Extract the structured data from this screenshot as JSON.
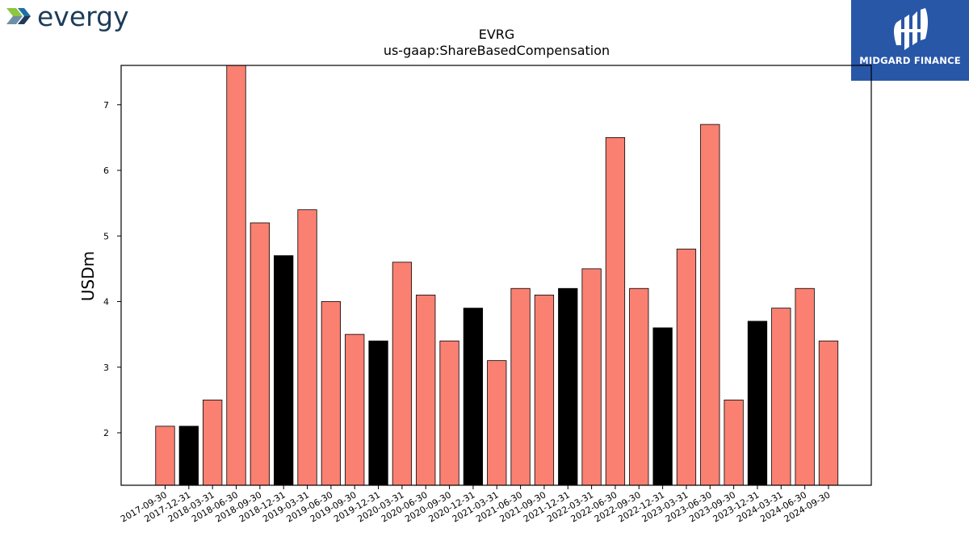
{
  "logos": {
    "left_text": "evergy",
    "right_text": "MIDGARD FINANCE"
  },
  "colors": {
    "bar_default": "#fa8072",
    "bar_highlight": "#000000",
    "brand_blue": "#2957a8",
    "evergy_text": "#1d3c5a",
    "evergy_green": "#8dc63f"
  },
  "chart_data": {
    "type": "bar",
    "title": "EVRG",
    "subtitle": "us-gaap:ShareBasedCompensation",
    "xlabel": "",
    "ylabel": "USDm",
    "ylim": [
      1.2,
      7.6
    ],
    "yticks": [
      2,
      3,
      4,
      5,
      6,
      7
    ],
    "grid": false,
    "categories": [
      "2017-09-30",
      "2017-12-31",
      "2018-03-31",
      "2018-06-30",
      "2018-09-30",
      "2018-12-31",
      "2019-03-31",
      "2019-06-30",
      "2019-09-30",
      "2019-12-31",
      "2020-03-31",
      "2020-06-30",
      "2020-09-30",
      "2020-12-31",
      "2021-03-31",
      "2021-06-30",
      "2021-09-30",
      "2021-12-31",
      "2022-03-31",
      "2022-06-30",
      "2022-09-30",
      "2022-12-31",
      "2023-03-31",
      "2023-06-30",
      "2023-09-30",
      "2023-12-31",
      "2024-03-31",
      "2024-06-30",
      "2024-09-30"
    ],
    "values": [
      2.1,
      2.1,
      2.5,
      7.6,
      5.2,
      4.7,
      5.4,
      4.0,
      3.5,
      3.4,
      4.6,
      4.1,
      3.4,
      3.9,
      3.1,
      4.2,
      4.1,
      4.2,
      4.5,
      6.5,
      4.2,
      3.6,
      4.8,
      6.7,
      2.5,
      3.7,
      3.9,
      4.2,
      3.4
    ],
    "highlight": [
      false,
      true,
      false,
      false,
      false,
      true,
      false,
      false,
      false,
      true,
      false,
      false,
      false,
      true,
      false,
      false,
      false,
      true,
      false,
      false,
      false,
      true,
      false,
      false,
      false,
      true,
      false,
      false,
      false
    ]
  }
}
